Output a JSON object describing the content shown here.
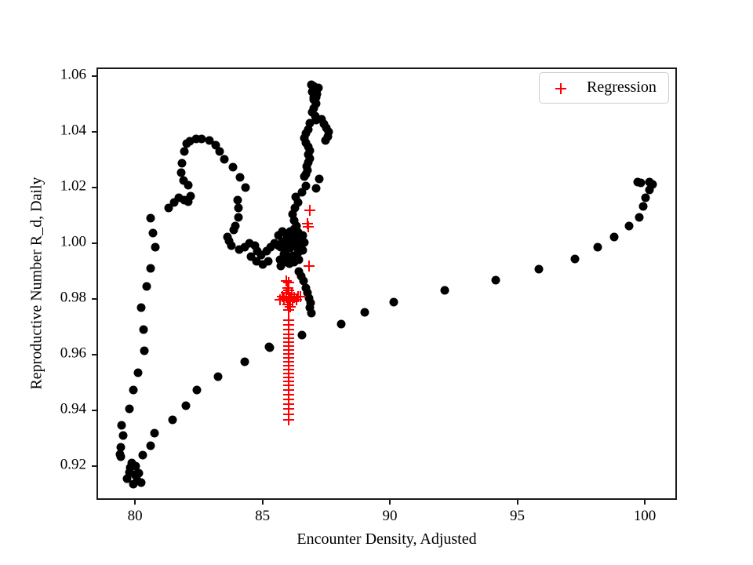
{
  "figure": {
    "background": "#ffffff"
  },
  "chart_data": {
    "type": "scatter",
    "title": "",
    "xlabel": "Encounter Density, Adjusted",
    "ylabel": "Reproductive Number R_d, Daily",
    "xlim": [
      78.49,
      101.26
    ],
    "ylim": [
      0.9079,
      1.0631
    ],
    "x_ticks": [
      80,
      85,
      90,
      95,
      100
    ],
    "x_tick_labels": [
      "80",
      "85",
      "90",
      "95",
      "100"
    ],
    "y_ticks": [
      0.92,
      0.94,
      0.96,
      0.98,
      1.0,
      1.02,
      1.04,
      1.06
    ],
    "y_tick_labels": [
      "0.92",
      "0.94",
      "0.96",
      "0.98",
      "1.00",
      "1.02",
      "1.04",
      "1.06"
    ],
    "grid": false,
    "legend": {
      "position": "upper right",
      "entries": [
        {
          "label": "Regression",
          "marker": "plus",
          "color": "#ff0000"
        }
      ]
    },
    "series": [
      {
        "name": "trajectory",
        "marker": "circle",
        "color": "#000000",
        "in_legend": false,
        "points": [
          [
            79.42,
            0.9242
          ],
          [
            79.45,
            0.9268
          ],
          [
            79.54,
            0.931
          ],
          [
            79.48,
            0.9346
          ],
          [
            79.45,
            0.9234
          ],
          [
            79.78,
            0.9406
          ],
          [
            79.94,
            0.9473
          ],
          [
            80.12,
            0.9535
          ],
          [
            80.37,
            0.9614
          ],
          [
            80.34,
            0.969
          ],
          [
            80.25,
            0.9769
          ],
          [
            80.46,
            0.9845
          ],
          [
            80.62,
            0.991
          ],
          [
            80.8,
            0.9986
          ],
          [
            80.71,
            1.0037
          ],
          [
            80.62,
            1.009
          ],
          [
            79.69,
            0.9155
          ],
          [
            79.88,
            0.9211
          ],
          [
            80.03,
            0.92
          ],
          [
            79.78,
            0.9177
          ],
          [
            80.0,
            0.9168
          ],
          [
            80.09,
            0.9149
          ],
          [
            80.25,
            0.9141
          ],
          [
            79.94,
            0.9135
          ],
          [
            79.82,
            0.9194
          ],
          [
            80.15,
            0.9174
          ],
          [
            81.32,
            1.0127
          ],
          [
            81.54,
            1.0146
          ],
          [
            81.72,
            1.0163
          ],
          [
            81.94,
            1.0155
          ],
          [
            82.09,
            1.0149
          ],
          [
            82.18,
            1.0169
          ],
          [
            82.09,
            1.0208
          ],
          [
            81.91,
            1.0225
          ],
          [
            81.82,
            1.0254
          ],
          [
            81.85,
            1.0287
          ],
          [
            81.94,
            1.033
          ],
          [
            82.03,
            1.0358
          ],
          [
            82.15,
            1.0366
          ],
          [
            82.4,
            1.0375
          ],
          [
            82.62,
            1.0375
          ],
          [
            82.92,
            1.0369
          ],
          [
            83.17,
            1.0352
          ],
          [
            83.32,
            1.033
          ],
          [
            83.51,
            1.0301
          ],
          [
            83.85,
            1.0273
          ],
          [
            84.12,
            1.0237
          ],
          [
            84.34,
            1.02
          ],
          [
            84.03,
            1.0155
          ],
          [
            84.06,
            1.0127
          ],
          [
            84.06,
            1.0093
          ],
          [
            83.94,
            1.0062
          ],
          [
            83.88,
            1.0048
          ],
          [
            83.63,
            1.0023
          ],
          [
            83.69,
            1.0008
          ],
          [
            83.78,
            0.9992
          ],
          [
            84.09,
            0.9977
          ],
          [
            84.31,
            0.9986
          ],
          [
            84.49,
            1.0
          ],
          [
            84.71,
            0.9992
          ],
          [
            84.8,
            0.9972
          ],
          [
            84.95,
            0.9958
          ],
          [
            85.17,
            0.9972
          ],
          [
            85.32,
            0.9986
          ],
          [
            85.48,
            1.0
          ],
          [
            85.63,
            0.9992
          ],
          [
            84.55,
            0.9952
          ],
          [
            84.77,
            0.9935
          ],
          [
            85.02,
            0.9924
          ],
          [
            85.23,
            0.9935
          ],
          [
            85.63,
            1.0028
          ],
          [
            85.78,
            1.0042
          ],
          [
            85.94,
            1.0034
          ],
          [
            86.09,
            1.0042
          ],
          [
            86.25,
            1.0051
          ],
          [
            86.4,
            1.0039
          ],
          [
            86.15,
            1.0028
          ],
          [
            85.97,
            1.0017
          ],
          [
            85.78,
            1.0006
          ],
          [
            86.03,
            1.0
          ],
          [
            86.25,
            1.0008
          ],
          [
            86.46,
            1.0017
          ],
          [
            86.58,
            1.0028
          ],
          [
            85.72,
            0.9986
          ],
          [
            85.91,
            0.9977
          ],
          [
            86.09,
            0.9983
          ],
          [
            86.31,
            0.9989
          ],
          [
            86.49,
            0.9994
          ],
          [
            86.65,
            1.0003
          ],
          [
            85.85,
            0.9961
          ],
          [
            86.03,
            0.9952
          ],
          [
            86.22,
            0.9955
          ],
          [
            86.4,
            0.9966
          ],
          [
            86.58,
            0.9975
          ],
          [
            85.69,
            0.9941
          ],
          [
            85.88,
            0.9932
          ],
          [
            86.06,
            0.9927
          ],
          [
            86.25,
            0.9932
          ],
          [
            86.43,
            0.9941
          ],
          [
            85.72,
            0.9918
          ],
          [
            86.34,
            1.0062
          ],
          [
            86.25,
            1.0082
          ],
          [
            86.18,
            1.0104
          ],
          [
            86.28,
            1.0127
          ],
          [
            86.4,
            1.0146
          ],
          [
            86.31,
            1.0166
          ],
          [
            86.55,
            1.0183
          ],
          [
            86.71,
            1.0206
          ],
          [
            86.65,
            1.0239
          ],
          [
            86.71,
            1.0248
          ],
          [
            86.77,
            1.0262
          ],
          [
            86.74,
            1.0276
          ],
          [
            86.8,
            1.029
          ],
          [
            86.86,
            1.0304
          ],
          [
            86.8,
            1.0318
          ],
          [
            86.86,
            1.0332
          ],
          [
            86.8,
            1.0346
          ],
          [
            86.71,
            1.0361
          ],
          [
            86.65,
            1.0377
          ],
          [
            86.71,
            1.0394
          ],
          [
            86.8,
            1.0408
          ],
          [
            86.86,
            1.0431
          ],
          [
            86.95,
            1.047
          ],
          [
            87.02,
            1.0484
          ],
          [
            87.08,
            1.0456
          ],
          [
            87.11,
            1.0442
          ],
          [
            87.11,
            1.0501
          ],
          [
            87.02,
            1.0515
          ],
          [
            87.02,
            1.0524
          ],
          [
            87.14,
            1.0535
          ],
          [
            86.95,
            1.0544
          ],
          [
            87.17,
            1.0555
          ],
          [
            87.02,
            1.0563
          ],
          [
            86.92,
            1.0569
          ],
          [
            87.2,
            1.0558
          ],
          [
            87.11,
            1.0524
          ],
          [
            87.32,
            1.0445
          ],
          [
            87.42,
            1.0428
          ],
          [
            87.51,
            1.0414
          ],
          [
            87.6,
            1.04
          ],
          [
            87.57,
            1.0383
          ],
          [
            87.48,
            1.0369
          ],
          [
            87.23,
            1.0231
          ],
          [
            87.11,
            1.0197
          ],
          [
            86.62,
            0.9865
          ],
          [
            86.71,
            0.9839
          ],
          [
            86.77,
            0.9823
          ],
          [
            86.83,
            0.9803
          ],
          [
            86.89,
            0.9786
          ],
          [
            86.86,
            0.9769
          ],
          [
            86.92,
            0.9749
          ],
          [
            86.43,
            0.9899
          ],
          [
            86.52,
            0.9882
          ],
          [
            85.26,
            0.9628
          ],
          [
            86.55,
            0.967
          ],
          [
            88.09,
            0.971
          ],
          [
            89.02,
            0.9752
          ],
          [
            90.15,
            0.9789
          ],
          [
            92.15,
            0.9831
          ],
          [
            94.15,
            0.9868
          ],
          [
            95.85,
            0.9907
          ],
          [
            97.26,
            0.9944
          ],
          [
            98.15,
            0.9986
          ],
          [
            98.8,
            1.0023
          ],
          [
            99.38,
            1.0062
          ],
          [
            99.78,
            1.0093
          ],
          [
            99.94,
            1.0132
          ],
          [
            100.03,
            1.0163
          ],
          [
            100.18,
            1.0192
          ],
          [
            100.31,
            1.0211
          ],
          [
            100.18,
            1.022
          ],
          [
            99.85,
            1.0217
          ],
          [
            99.72,
            1.022
          ],
          [
            80.31,
            0.9239
          ],
          [
            80.62,
            0.9273
          ],
          [
            80.77,
            0.9318
          ],
          [
            81.48,
            0.9366
          ],
          [
            82.0,
            0.9417
          ],
          [
            82.43,
            0.9473
          ],
          [
            83.26,
            0.9521
          ],
          [
            84.31,
            0.9575
          ],
          [
            85.29,
            0.9625
          ]
        ]
      },
      {
        "name": "Regression",
        "marker": "plus",
        "color": "#ff0000",
        "in_legend": true,
        "points": [
          [
            86.86,
            1.0118
          ],
          [
            86.77,
            1.007
          ],
          [
            86.8,
            1.0059
          ],
          [
            86.83,
            0.9918
          ],
          [
            85.94,
            0.9865
          ],
          [
            86.03,
            0.9859
          ],
          [
            86.0,
            0.9839
          ],
          [
            86.03,
            0.9831
          ],
          [
            85.94,
            0.9823
          ],
          [
            86.15,
            0.9817
          ],
          [
            85.78,
            0.9808
          ],
          [
            85.94,
            0.9806
          ],
          [
            86.09,
            0.9803
          ],
          [
            86.25,
            0.9806
          ],
          [
            86.4,
            0.9808
          ],
          [
            86.49,
            0.9808
          ],
          [
            85.69,
            0.9797
          ],
          [
            85.85,
            0.98
          ],
          [
            86.03,
            0.9794
          ],
          [
            86.18,
            0.9792
          ],
          [
            86.34,
            0.9797
          ],
          [
            86.0,
            0.978
          ],
          [
            86.09,
            0.9772
          ],
          [
            86.03,
            0.9761
          ],
          [
            86.03,
            0.9724
          ],
          [
            86.03,
            0.9707
          ],
          [
            86.03,
            0.969
          ],
          [
            86.03,
            0.9673
          ],
          [
            86.03,
            0.9659
          ],
          [
            86.03,
            0.9645
          ],
          [
            86.03,
            0.9631
          ],
          [
            86.03,
            0.9617
          ],
          [
            86.03,
            0.9603
          ],
          [
            86.03,
            0.9589
          ],
          [
            86.03,
            0.9575
          ],
          [
            86.03,
            0.9561
          ],
          [
            86.03,
            0.9546
          ],
          [
            86.03,
            0.9532
          ],
          [
            86.03,
            0.9518
          ],
          [
            86.03,
            0.9504
          ],
          [
            86.03,
            0.949
          ],
          [
            86.03,
            0.9473
          ],
          [
            86.03,
            0.9456
          ],
          [
            86.03,
            0.9439
          ],
          [
            86.03,
            0.9423
          ],
          [
            86.03,
            0.9406
          ],
          [
            86.03,
            0.9386
          ],
          [
            86.03,
            0.9366
          ]
        ]
      }
    ]
  }
}
